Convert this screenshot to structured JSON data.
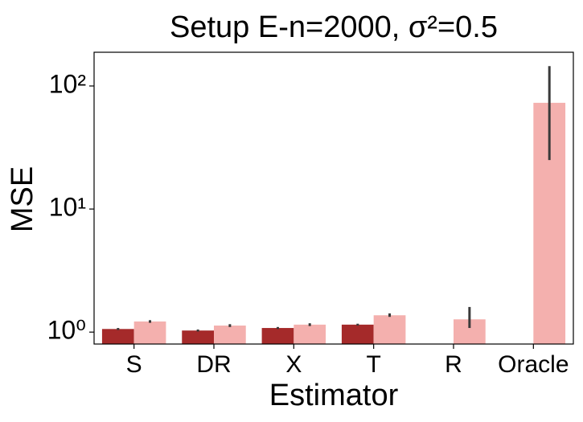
{
  "chart_data": {
    "type": "bar",
    "title": "Setup E-n=2000, σ²=0.5",
    "xlabel": "Estimator",
    "ylabel": "MSE",
    "categories": [
      "S",
      "DR",
      "X",
      "T",
      "R",
      "Oracle"
    ],
    "series": [
      {
        "color": "#a52a2a",
        "values": [
          1.06,
          1.03,
          1.08,
          1.15,
          null,
          null
        ],
        "ci": [
          [
            1.04,
            1.08
          ],
          [
            1.01,
            1.05
          ],
          [
            1.06,
            1.1
          ],
          [
            1.13,
            1.17
          ],
          null,
          null
        ]
      },
      {
        "color": "#f4b0ae",
        "values": [
          1.22,
          1.13,
          1.15,
          1.37,
          1.27,
          73
        ],
        "ci": [
          [
            1.19,
            1.25
          ],
          [
            1.1,
            1.16
          ],
          [
            1.12,
            1.18
          ],
          [
            1.33,
            1.42
          ],
          [
            1.08,
            1.6
          ],
          [
            25,
            145
          ]
        ]
      }
    ],
    "log_scale": true,
    "ylim": [
      0.8,
      188
    ],
    "yticks": [
      {
        "value": 1,
        "label": "10⁰"
      },
      {
        "value": 10,
        "label": "10¹"
      },
      {
        "value": 100,
        "label": "10²"
      }
    ]
  }
}
